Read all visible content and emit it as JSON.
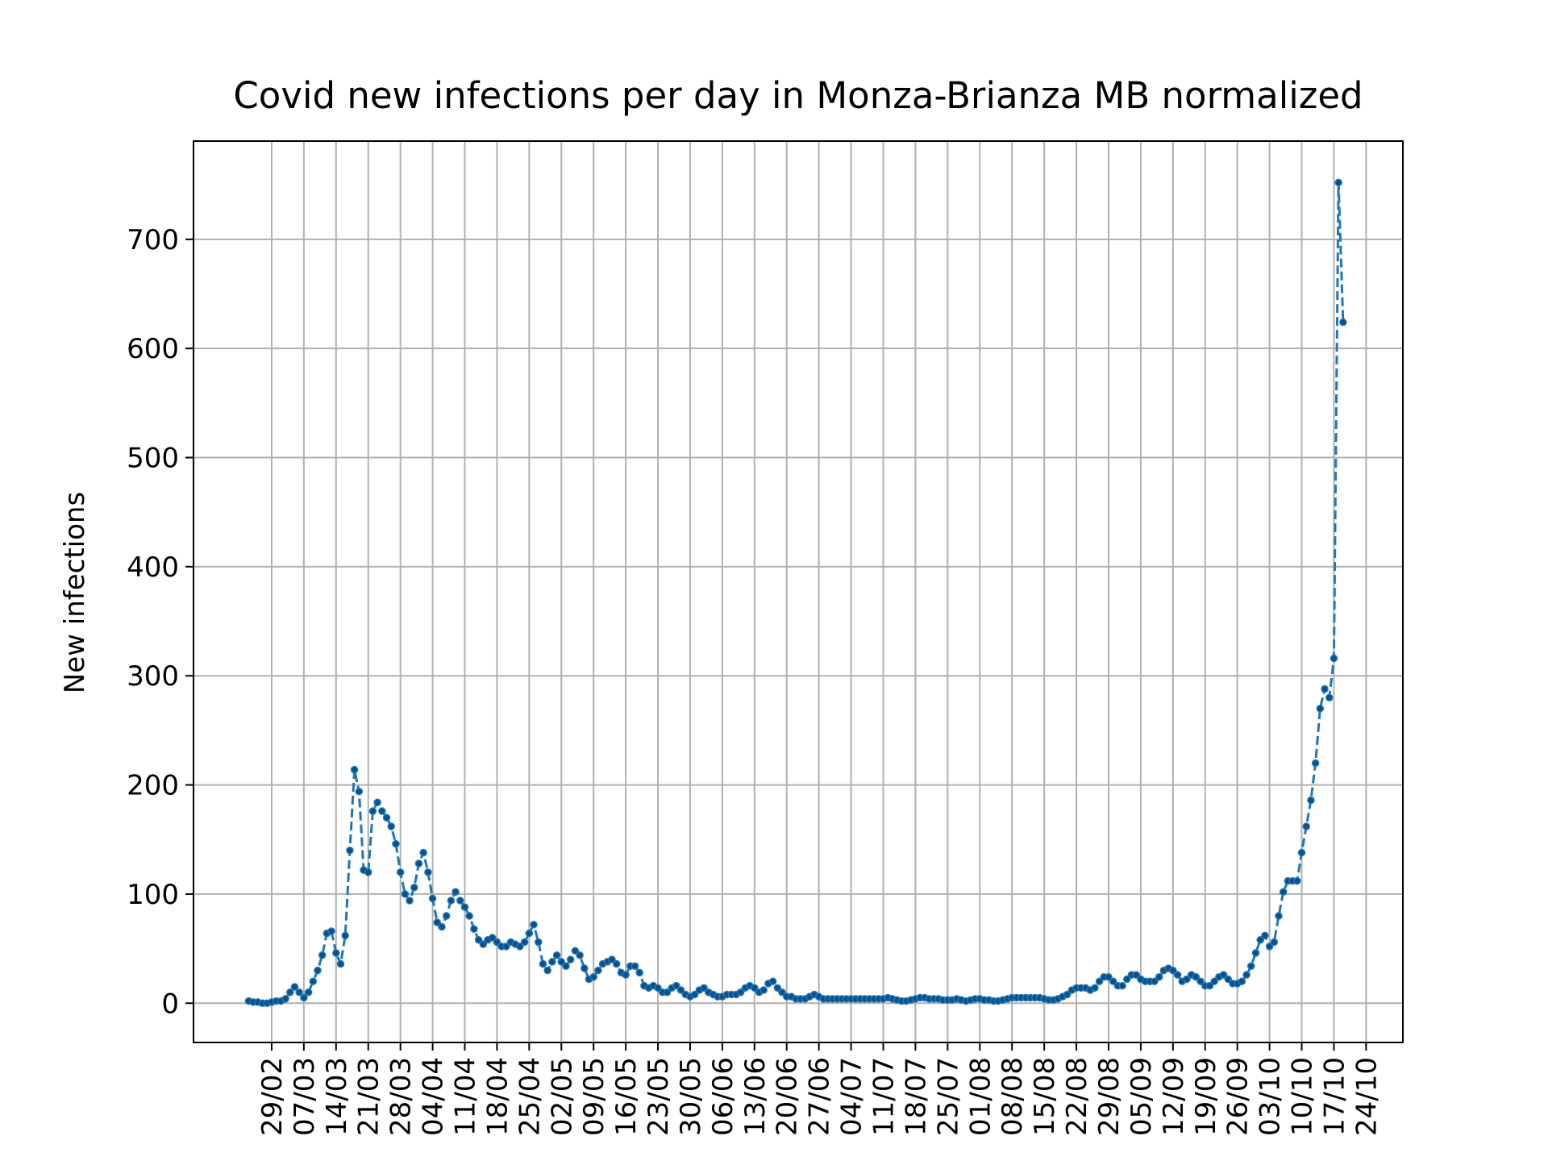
{
  "chart_data": {
    "type": "line",
    "title": "Covid new infections per day in Monza-Brianza MB normalized",
    "xlabel": "",
    "ylabel": "New infections",
    "x_start": "24/02",
    "x_tick_labels": [
      "29/02",
      "07/03",
      "14/03",
      "21/03",
      "28/03",
      "04/04",
      "11/04",
      "18/04",
      "25/04",
      "02/05",
      "09/05",
      "16/05",
      "23/05",
      "30/05",
      "06/06",
      "13/06",
      "20/06",
      "27/06",
      "04/07",
      "11/07",
      "18/07",
      "25/07",
      "01/08",
      "08/08",
      "15/08",
      "22/08",
      "29/08",
      "05/09",
      "12/09",
      "19/09",
      "26/09",
      "03/10",
      "10/10",
      "17/10",
      "24/10"
    ],
    "y_ticks": [
      0,
      100,
      200,
      300,
      400,
      500,
      600,
      700
    ],
    "xlim_days": [
      -12,
      251
    ],
    "ylim": [
      -36,
      790
    ],
    "grid": true,
    "line_color": "#1f77b4",
    "line_style": "dashed",
    "marker": "dot",
    "values": [
      2,
      1,
      1,
      0,
      0,
      1,
      2,
      2,
      4,
      10,
      15,
      10,
      5,
      10,
      20,
      30,
      44,
      64,
      66,
      46,
      36,
      62,
      140,
      214,
      194,
      122,
      120,
      176,
      184,
      176,
      170,
      162,
      146,
      120,
      100,
      94,
      106,
      128,
      138,
      120,
      96,
      74,
      70,
      80,
      94,
      102,
      94,
      88,
      80,
      68,
      58,
      54,
      58,
      60,
      56,
      52,
      52,
      56,
      54,
      52,
      56,
      64,
      72,
      56,
      36,
      30,
      38,
      44,
      38,
      34,
      40,
      48,
      44,
      32,
      22,
      24,
      30,
      36,
      38,
      40,
      36,
      28,
      26,
      34,
      34,
      28,
      16,
      14,
      16,
      14,
      10,
      10,
      14,
      16,
      12,
      8,
      6,
      8,
      12,
      14,
      10,
      8,
      6,
      6,
      8,
      8,
      8,
      10,
      14,
      16,
      14,
      10,
      12,
      18,
      20,
      14,
      10,
      6,
      6,
      4,
      4,
      4,
      6,
      8,
      6,
      4,
      4,
      4,
      4,
      4,
      4,
      4,
      4,
      4,
      4,
      4,
      4,
      4,
      4,
      5,
      4,
      3,
      2,
      2,
      3,
      4,
      5,
      5,
      4,
      4,
      4,
      3,
      3,
      3,
      4,
      3,
      2,
      3,
      4,
      4,
      3,
      3,
      2,
      2,
      3,
      4,
      5,
      5,
      5,
      5,
      5,
      5,
      5,
      4,
      3,
      3,
      4,
      6,
      8,
      12,
      14,
      14,
      14,
      12,
      14,
      20,
      24,
      24,
      20,
      16,
      16,
      22,
      26,
      26,
      22,
      20,
      20,
      20,
      24,
      30,
      32,
      30,
      26,
      20,
      22,
      26,
      24,
      20,
      16,
      16,
      20,
      24,
      26,
      22,
      18,
      18,
      20,
      26,
      34,
      46,
      58,
      62,
      52,
      56,
      80,
      102,
      112,
      112,
      112,
      138,
      162,
      186,
      220,
      270,
      288,
      280,
      316,
      752,
      624
    ]
  }
}
